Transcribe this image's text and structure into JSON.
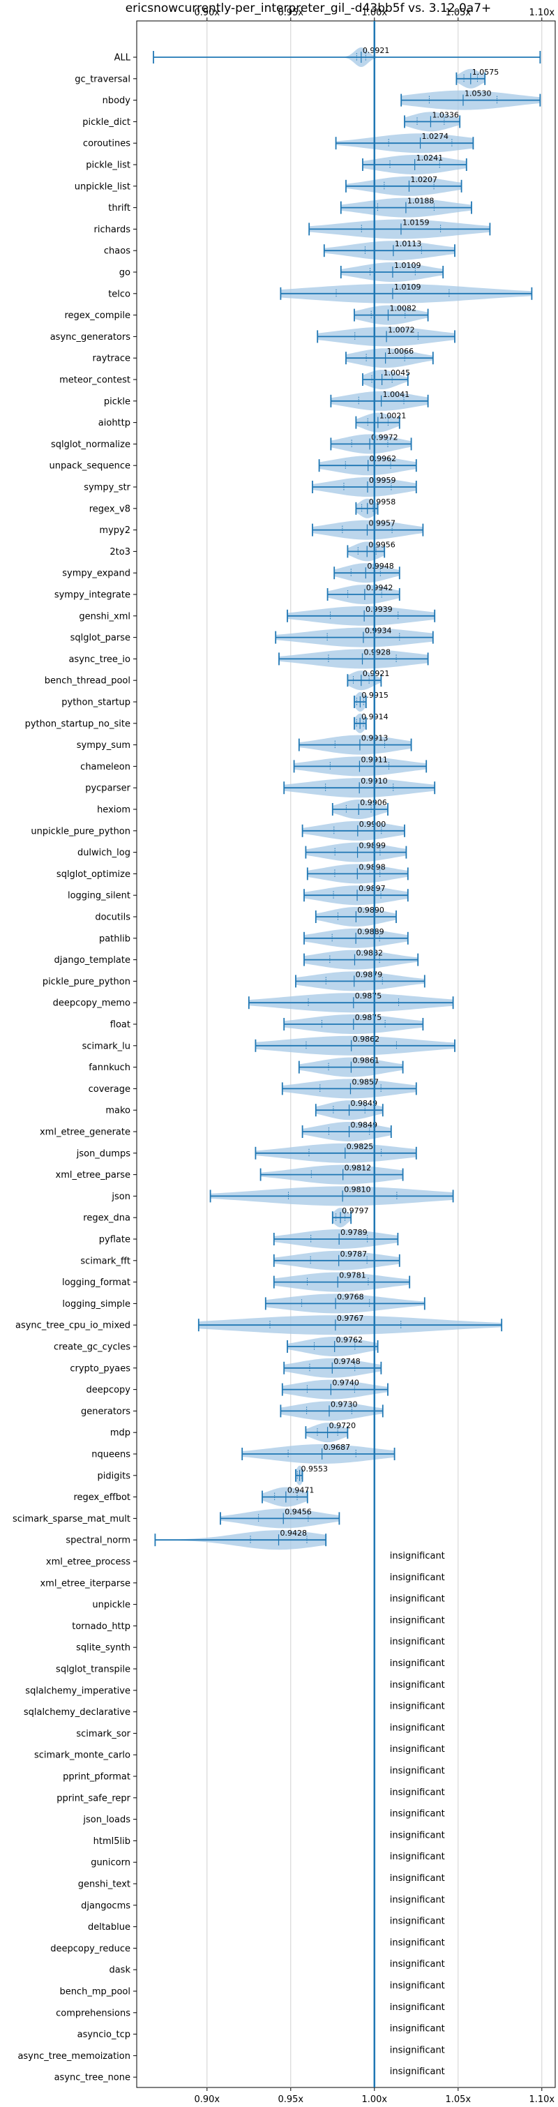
{
  "chart_data": {
    "type": "violin",
    "title": "ericsnowcurrently-per_interpreter_gil_-d43bb5f vs. 3.12.0a7+",
    "xlabel": "",
    "ylabel": "",
    "xlim": [
      0.858,
      1.108
    ],
    "x_ticks": [
      0.9,
      0.95,
      1.0,
      1.05,
      1.1
    ],
    "x_tick_labels": [
      "0.90x",
      "0.95x",
      "1.00x",
      "1.05x",
      "1.10x"
    ],
    "reference_line": 1.0,
    "grid": true,
    "colors": {
      "violin": "#a6c8e6",
      "line": "#1f77b4",
      "grid": "#d0d0d0"
    },
    "insignificant_label": "insignificant",
    "rows": [
      {
        "name": "ALL",
        "label": "0.9921",
        "median": 0.9921,
        "min": 0.868,
        "max": 1.099,
        "spread": 0.004
      },
      {
        "name": "gc_traversal",
        "label": "1.0575",
        "median": 1.0575,
        "min": 1.049,
        "max": 1.066,
        "spread": 0.006
      },
      {
        "name": "nbody",
        "label": "1.0530",
        "median": 1.053,
        "min": 1.016,
        "max": 1.099,
        "spread": 0.03
      },
      {
        "name": "pickle_dict",
        "label": "1.0336",
        "median": 1.0336,
        "min": 1.018,
        "max": 1.051,
        "spread": 0.012
      },
      {
        "name": "coroutines",
        "label": "1.0274",
        "median": 1.0274,
        "min": 0.977,
        "max": 1.059,
        "spread": 0.028
      },
      {
        "name": "pickle_list",
        "label": "1.0241",
        "median": 1.0241,
        "min": 0.993,
        "max": 1.055,
        "spread": 0.022
      },
      {
        "name": "unpickle_list",
        "label": "1.0207",
        "median": 1.0207,
        "min": 0.983,
        "max": 1.052,
        "spread": 0.022
      },
      {
        "name": "thrift",
        "label": "1.0188",
        "median": 1.0188,
        "min": 0.98,
        "max": 1.058,
        "spread": 0.025
      },
      {
        "name": "richards",
        "label": "1.0159",
        "median": 1.0159,
        "min": 0.961,
        "max": 1.069,
        "spread": 0.035
      },
      {
        "name": "chaos",
        "label": "1.0113",
        "median": 1.0113,
        "min": 0.97,
        "max": 1.048,
        "spread": 0.025
      },
      {
        "name": "go",
        "label": "1.0109",
        "median": 1.0109,
        "min": 0.98,
        "max": 1.041,
        "spread": 0.02
      },
      {
        "name": "telco",
        "label": "1.0109",
        "median": 1.0109,
        "min": 0.944,
        "max": 1.094,
        "spread": 0.05
      },
      {
        "name": "regex_compile",
        "label": "1.0082",
        "median": 1.0082,
        "min": 0.988,
        "max": 1.032,
        "spread": 0.015
      },
      {
        "name": "async_generators",
        "label": "1.0072",
        "median": 1.0072,
        "min": 0.966,
        "max": 1.048,
        "spread": 0.028
      },
      {
        "name": "raytrace",
        "label": "1.0066",
        "median": 1.0066,
        "min": 0.983,
        "max": 1.035,
        "spread": 0.017
      },
      {
        "name": "meteor_contest",
        "label": "1.0045",
        "median": 1.0045,
        "min": 0.993,
        "max": 1.02,
        "spread": 0.009
      },
      {
        "name": "pickle",
        "label": "1.0041",
        "median": 1.0041,
        "min": 0.974,
        "max": 1.032,
        "spread": 0.02
      },
      {
        "name": "aiohttp",
        "label": "1.0021",
        "median": 1.0021,
        "min": 0.989,
        "max": 1.015,
        "spread": 0.009
      },
      {
        "name": "sqlglot_normalize",
        "label": "0.9972",
        "median": 0.9972,
        "min": 0.974,
        "max": 1.022,
        "spread": 0.016
      },
      {
        "name": "unpack_sequence",
        "label": "0.9962",
        "median": 0.9962,
        "min": 0.967,
        "max": 1.025,
        "spread": 0.02
      },
      {
        "name": "sympy_str",
        "label": "0.9959",
        "median": 0.9959,
        "min": 0.963,
        "max": 1.025,
        "spread": 0.021
      },
      {
        "name": "regex_v8",
        "label": "0.9958",
        "median": 0.9958,
        "min": 0.989,
        "max": 1.002,
        "spread": 0.005
      },
      {
        "name": "mypy2",
        "label": "0.9957",
        "median": 0.9957,
        "min": 0.963,
        "max": 1.029,
        "spread": 0.022
      },
      {
        "name": "2to3",
        "label": "0.9956",
        "median": 0.9956,
        "min": 0.984,
        "max": 1.006,
        "spread": 0.008
      },
      {
        "name": "sympy_expand",
        "label": "0.9948",
        "median": 0.9948,
        "min": 0.976,
        "max": 1.015,
        "spread": 0.013
      },
      {
        "name": "sympy_integrate",
        "label": "0.9942",
        "median": 0.9942,
        "min": 0.972,
        "max": 1.015,
        "spread": 0.015
      },
      {
        "name": "genshi_xml",
        "label": "0.9939",
        "median": 0.9939,
        "min": 0.948,
        "max": 1.036,
        "spread": 0.03
      },
      {
        "name": "sqlglot_parse",
        "label": "0.9934",
        "median": 0.9934,
        "min": 0.941,
        "max": 1.035,
        "spread": 0.032
      },
      {
        "name": "async_tree_io",
        "label": "0.9928",
        "median": 0.9928,
        "min": 0.943,
        "max": 1.032,
        "spread": 0.03
      },
      {
        "name": "bench_thread_pool",
        "label": "0.9921",
        "median": 0.9921,
        "min": 0.984,
        "max": 1.004,
        "spread": 0.007
      },
      {
        "name": "python_startup",
        "label": "0.9915",
        "median": 0.9915,
        "min": 0.988,
        "max": 0.995,
        "spread": 0.003
      },
      {
        "name": "python_startup_no_site",
        "label": "0.9914",
        "median": 0.9914,
        "min": 0.988,
        "max": 0.995,
        "spread": 0.003
      },
      {
        "name": "sympy_sum",
        "label": "0.9913",
        "median": 0.9913,
        "min": 0.955,
        "max": 1.022,
        "spread": 0.022
      },
      {
        "name": "chameleon",
        "label": "0.9911",
        "median": 0.9911,
        "min": 0.952,
        "max": 1.031,
        "spread": 0.026
      },
      {
        "name": "pycparser",
        "label": "0.9910",
        "median": 0.991,
        "min": 0.946,
        "max": 1.036,
        "spread": 0.03
      },
      {
        "name": "hexiom",
        "label": "0.9906",
        "median": 0.9906,
        "min": 0.975,
        "max": 1.008,
        "spread": 0.011
      },
      {
        "name": "unpickle_pure_python",
        "label": "0.9900",
        "median": 0.99,
        "min": 0.957,
        "max": 1.018,
        "spread": 0.021
      },
      {
        "name": "dulwich_log",
        "label": "0.9899",
        "median": 0.9899,
        "min": 0.959,
        "max": 1.019,
        "spread": 0.02
      },
      {
        "name": "sqlglot_optimize",
        "label": "0.9898",
        "median": 0.9898,
        "min": 0.96,
        "max": 1.02,
        "spread": 0.02
      },
      {
        "name": "logging_silent",
        "label": "0.9897",
        "median": 0.9897,
        "min": 0.958,
        "max": 1.02,
        "spread": 0.021
      },
      {
        "name": "docutils",
        "label": "0.9890",
        "median": 0.989,
        "min": 0.965,
        "max": 1.013,
        "spread": 0.016
      },
      {
        "name": "pathlib",
        "label": "0.9889",
        "median": 0.9889,
        "min": 0.958,
        "max": 1.02,
        "spread": 0.021
      },
      {
        "name": "django_template",
        "label": "0.9882",
        "median": 0.9882,
        "min": 0.958,
        "max": 1.026,
        "spread": 0.022
      },
      {
        "name": "pickle_pure_python",
        "label": "0.9879",
        "median": 0.9879,
        "min": 0.953,
        "max": 1.03,
        "spread": 0.025
      },
      {
        "name": "deepcopy_memo",
        "label": "0.9875",
        "median": 0.9875,
        "min": 0.925,
        "max": 1.047,
        "spread": 0.04
      },
      {
        "name": "float",
        "label": "0.9875",
        "median": 0.9875,
        "min": 0.946,
        "max": 1.029,
        "spread": 0.028
      },
      {
        "name": "scimark_lu",
        "label": "0.9862",
        "median": 0.9862,
        "min": 0.929,
        "max": 1.048,
        "spread": 0.04
      },
      {
        "name": "fannkuch",
        "label": "0.9861",
        "median": 0.9861,
        "min": 0.955,
        "max": 1.017,
        "spread": 0.02
      },
      {
        "name": "coverage",
        "label": "0.9857",
        "median": 0.9857,
        "min": 0.945,
        "max": 1.025,
        "spread": 0.027
      },
      {
        "name": "mako",
        "label": "0.9849",
        "median": 0.9849,
        "min": 0.965,
        "max": 1.005,
        "spread": 0.014
      },
      {
        "name": "xml_etree_generate",
        "label": "0.9849",
        "median": 0.9849,
        "min": 0.957,
        "max": 1.01,
        "spread": 0.018
      },
      {
        "name": "json_dumps",
        "label": "0.9825",
        "median": 0.9825,
        "min": 0.929,
        "max": 1.025,
        "spread": 0.032
      },
      {
        "name": "xml_etree_parse",
        "label": "0.9812",
        "median": 0.9812,
        "min": 0.932,
        "max": 1.017,
        "spread": 0.028
      },
      {
        "name": "json",
        "label": "0.9810",
        "median": 0.981,
        "min": 0.902,
        "max": 1.047,
        "spread": 0.048
      },
      {
        "name": "regex_dna",
        "label": "0.9797",
        "median": 0.9797,
        "min": 0.975,
        "max": 0.986,
        "spread": 0.004
      },
      {
        "name": "pyflate",
        "label": "0.9789",
        "median": 0.9789,
        "min": 0.94,
        "max": 1.014,
        "spread": 0.025
      },
      {
        "name": "scimark_fft",
        "label": "0.9787",
        "median": 0.9787,
        "min": 0.94,
        "max": 1.015,
        "spread": 0.025
      },
      {
        "name": "logging_format",
        "label": "0.9781",
        "median": 0.9781,
        "min": 0.94,
        "max": 1.021,
        "spread": 0.027
      },
      {
        "name": "logging_simple",
        "label": "0.9768",
        "median": 0.9768,
        "min": 0.935,
        "max": 1.03,
        "spread": 0.03
      },
      {
        "name": "async_tree_cpu_io_mixed",
        "label": "0.9767",
        "median": 0.9767,
        "min": 0.895,
        "max": 1.076,
        "spread": 0.058
      },
      {
        "name": "create_gc_cycles",
        "label": "0.9762",
        "median": 0.9762,
        "min": 0.948,
        "max": 1.002,
        "spread": 0.018
      },
      {
        "name": "crypto_pyaes",
        "label": "0.9748",
        "median": 0.9748,
        "min": 0.946,
        "max": 1.004,
        "spread": 0.02
      },
      {
        "name": "deepcopy",
        "label": "0.9740",
        "median": 0.974,
        "min": 0.945,
        "max": 1.008,
        "spread": 0.021
      },
      {
        "name": "generators",
        "label": "0.9730",
        "median": 0.973,
        "min": 0.944,
        "max": 1.005,
        "spread": 0.02
      },
      {
        "name": "mdp",
        "label": "0.9720",
        "median": 0.972,
        "min": 0.959,
        "max": 0.984,
        "spread": 0.009
      },
      {
        "name": "nqueens",
        "label": "0.9687",
        "median": 0.9687,
        "min": 0.921,
        "max": 1.012,
        "spread": 0.03
      },
      {
        "name": "pidigits",
        "label": "0.9553",
        "median": 0.9553,
        "min": 0.953,
        "max": 0.957,
        "spread": 0.002
      },
      {
        "name": "regex_effbot",
        "label": "0.9471",
        "median": 0.9471,
        "min": 0.933,
        "max": 0.96,
        "spread": 0.01
      },
      {
        "name": "scimark_sparse_mat_mult",
        "label": "0.9456",
        "median": 0.9456,
        "min": 0.908,
        "max": 0.979,
        "spread": 0.022
      },
      {
        "name": "spectral_norm",
        "label": "0.9428",
        "median": 0.9428,
        "min": 0.869,
        "max": 0.971,
        "spread": 0.025
      },
      {
        "name": "xml_etree_process",
        "insignificant": true
      },
      {
        "name": "xml_etree_iterparse",
        "insignificant": true
      },
      {
        "name": "unpickle",
        "insignificant": true
      },
      {
        "name": "tornado_http",
        "insignificant": true
      },
      {
        "name": "sqlite_synth",
        "insignificant": true
      },
      {
        "name": "sqlglot_transpile",
        "insignificant": true
      },
      {
        "name": "sqlalchemy_imperative",
        "insignificant": true
      },
      {
        "name": "sqlalchemy_declarative",
        "insignificant": true
      },
      {
        "name": "scimark_sor",
        "insignificant": true
      },
      {
        "name": "scimark_monte_carlo",
        "insignificant": true
      },
      {
        "name": "pprint_pformat",
        "insignificant": true
      },
      {
        "name": "pprint_safe_repr",
        "insignificant": true
      },
      {
        "name": "json_loads",
        "insignificant": true
      },
      {
        "name": "html5lib",
        "insignificant": true
      },
      {
        "name": "gunicorn",
        "insignificant": true
      },
      {
        "name": "genshi_text",
        "insignificant": true
      },
      {
        "name": "djangocms",
        "insignificant": true
      },
      {
        "name": "deltablue",
        "insignificant": true
      },
      {
        "name": "deepcopy_reduce",
        "insignificant": true
      },
      {
        "name": "dask",
        "insignificant": true
      },
      {
        "name": "bench_mp_pool",
        "insignificant": true
      },
      {
        "name": "comprehensions",
        "insignificant": true
      },
      {
        "name": "asyncio_tcp",
        "insignificant": true
      },
      {
        "name": "async_tree_memoization",
        "insignificant": true
      },
      {
        "name": "async_tree_none",
        "insignificant": true
      }
    ]
  }
}
